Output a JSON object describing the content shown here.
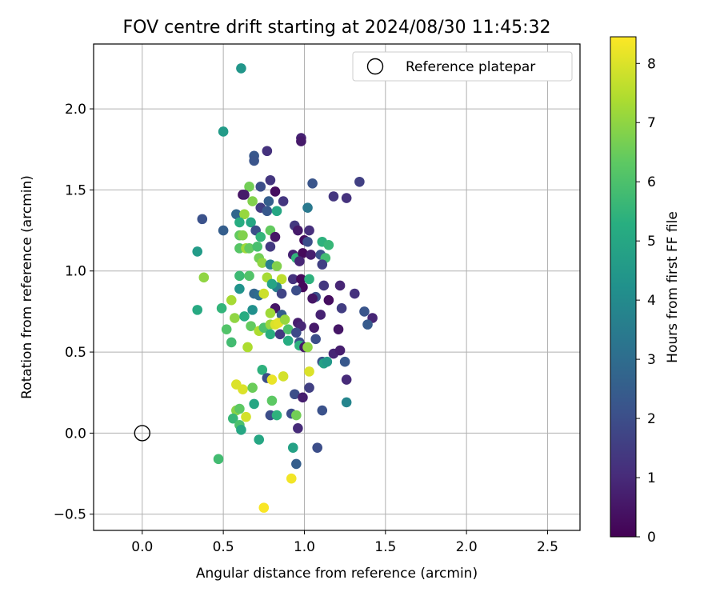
{
  "chart_data": {
    "type": "scatter",
    "title": "FOV centre drift starting at 2024/08/30 11:45:32",
    "xlabel": "Angular distance from reference (arcmin)",
    "ylabel": "Rotation from reference (arcmin)",
    "xlim": [
      -0.3,
      2.7
    ],
    "ylim": [
      -0.6,
      2.4
    ],
    "xticks": [
      0.0,
      0.5,
      1.0,
      1.5,
      2.0,
      2.5
    ],
    "xtick_labels": [
      "0.0",
      "0.5",
      "1.0",
      "1.5",
      "2.0",
      "2.5"
    ],
    "yticks": [
      -0.5,
      0.0,
      0.5,
      1.0,
      1.5,
      2.0
    ],
    "ytick_labels": [
      "−0.5",
      "0.0",
      "0.5",
      "1.0",
      "1.5",
      "2.0"
    ],
    "grid": true,
    "legend": {
      "position": "top-right",
      "entries": [
        {
          "label": "Reference platepar",
          "marker": "open-circle"
        }
      ]
    },
    "reference_point": {
      "x": 0.0,
      "y": 0.0
    },
    "colorbar": {
      "label": "Hours from first FF file",
      "colormap": "viridis",
      "min": 0,
      "max": 8.45,
      "ticks": [
        0,
        1,
        2,
        3,
        4,
        5,
        6,
        7,
        8
      ],
      "tick_labels": [
        "0",
        "1",
        "2",
        "3",
        "4",
        "5",
        "6",
        "7",
        "8"
      ]
    },
    "points": [
      [
        0.61,
        2.25,
        4.4
      ],
      [
        0.5,
        1.86,
        4.6
      ],
      [
        0.69,
        1.71,
        2.3
      ],
      [
        0.69,
        1.68,
        2.2
      ],
      [
        0.77,
        1.74,
        1.2
      ],
      [
        0.98,
        1.82,
        0.8
      ],
      [
        0.98,
        1.8,
        0.6
      ],
      [
        1.34,
        1.55,
        1.6
      ],
      [
        1.05,
        1.54,
        2.2
      ],
      [
        0.79,
        1.56,
        1.3
      ],
      [
        0.66,
        1.52,
        6.6
      ],
      [
        0.73,
        1.52,
        2.0
      ],
      [
        0.62,
        1.47,
        0.4
      ],
      [
        0.82,
        1.49,
        0.3
      ],
      [
        0.63,
        1.47,
        0.6
      ],
      [
        1.18,
        1.46,
        1.3
      ],
      [
        1.26,
        1.45,
        1.2
      ],
      [
        0.68,
        1.43,
        6.8
      ],
      [
        0.78,
        1.43,
        2.5
      ],
      [
        0.87,
        1.43,
        1.3
      ],
      [
        0.37,
        1.32,
        2.1
      ],
      [
        0.58,
        1.35,
        2.8
      ],
      [
        0.63,
        1.35,
        7.1
      ],
      [
        0.73,
        1.39,
        1.5
      ],
      [
        0.77,
        1.37,
        2.3
      ],
      [
        0.83,
        1.37,
        5.0
      ],
      [
        1.02,
        1.39,
        3.4
      ],
      [
        0.6,
        1.3,
        5.2
      ],
      [
        0.67,
        1.3,
        5.0
      ],
      [
        0.94,
        1.28,
        1.4
      ],
      [
        0.5,
        1.25,
        2.5
      ],
      [
        0.7,
        1.25,
        2.0
      ],
      [
        0.79,
        1.25,
        6.4
      ],
      [
        0.96,
        1.25,
        0.6
      ],
      [
        1.03,
        1.25,
        1.1
      ],
      [
        0.6,
        1.22,
        6.4
      ],
      [
        0.62,
        1.22,
        6.8
      ],
      [
        0.73,
        1.21,
        5.5
      ],
      [
        0.82,
        1.21,
        0.5
      ],
      [
        1.0,
        1.19,
        0.3
      ],
      [
        1.02,
        1.18,
        2.0
      ],
      [
        1.11,
        1.18,
        5.4
      ],
      [
        1.15,
        1.16,
        5.6
      ],
      [
        0.34,
        1.12,
        4.6
      ],
      [
        0.6,
        1.14,
        6.2
      ],
      [
        0.64,
        1.14,
        7.2
      ],
      [
        0.66,
        1.14,
        6.4
      ],
      [
        0.71,
        1.15,
        5.9
      ],
      [
        0.79,
        1.15,
        1.4
      ],
      [
        0.93,
        1.1,
        0.8
      ],
      [
        0.95,
        1.08,
        5.5
      ],
      [
        0.99,
        1.11,
        0.2
      ],
      [
        1.04,
        1.1,
        0.7
      ],
      [
        1.1,
        1.1,
        2.1
      ],
      [
        1.13,
        1.08,
        5.8
      ],
      [
        0.72,
        1.08,
        6.6
      ],
      [
        0.74,
        1.05,
        7.0
      ],
      [
        0.79,
        1.04,
        3.6
      ],
      [
        0.83,
        1.03,
        6.8
      ],
      [
        0.97,
        1.06,
        0.9
      ],
      [
        1.11,
        1.04,
        1.6
      ],
      [
        0.6,
        0.97,
        5.7
      ],
      [
        0.66,
        0.97,
        6.1
      ],
      [
        0.38,
        0.96,
        7.0
      ],
      [
        0.77,
        0.96,
        7.3
      ],
      [
        0.86,
        0.95,
        7.6
      ],
      [
        0.93,
        0.95,
        1.2
      ],
      [
        0.98,
        0.95,
        0.2
      ],
      [
        1.03,
        0.95,
        5.4
      ],
      [
        0.99,
        0.9,
        0.2
      ],
      [
        0.83,
        0.9,
        3.6
      ],
      [
        0.8,
        0.92,
        4.9
      ],
      [
        0.95,
        0.88,
        2.0
      ],
      [
        0.6,
        0.89,
        4.3
      ],
      [
        0.69,
        0.86,
        2.8
      ],
      [
        0.72,
        0.85,
        3.0
      ],
      [
        0.75,
        0.86,
        7.8
      ],
      [
        0.86,
        0.86,
        1.7
      ],
      [
        1.07,
        0.84,
        2.0
      ],
      [
        1.12,
        0.91,
        1.4
      ],
      [
        1.22,
        0.91,
        0.9
      ],
      [
        1.31,
        0.86,
        1.2
      ],
      [
        1.05,
        0.83,
        0.5
      ],
      [
        1.15,
        0.82,
        0.3
      ],
      [
        0.55,
        0.82,
        7.3
      ],
      [
        0.49,
        0.77,
        5.5
      ],
      [
        0.34,
        0.76,
        5.1
      ],
      [
        0.68,
        0.76,
        4.2
      ],
      [
        0.82,
        0.77,
        0.5
      ],
      [
        0.79,
        0.74,
        7.2
      ],
      [
        0.86,
        0.73,
        2.5
      ],
      [
        0.57,
        0.71,
        7.0
      ],
      [
        0.63,
        0.72,
        5.2
      ],
      [
        1.1,
        0.73,
        0.8
      ],
      [
        1.23,
        0.77,
        1.5
      ],
      [
        1.37,
        0.75,
        2.2
      ],
      [
        1.42,
        0.71,
        0.9
      ],
      [
        1.39,
        0.67,
        2.4
      ],
      [
        0.52,
        0.64,
        6.1
      ],
      [
        0.67,
        0.66,
        6.4
      ],
      [
        0.72,
        0.63,
        7.4
      ],
      [
        0.75,
        0.65,
        6.0
      ],
      [
        0.79,
        0.67,
        7.1
      ],
      [
        0.82,
        0.67,
        8.0
      ],
      [
        0.84,
        0.68,
        8.1
      ],
      [
        0.88,
        0.7,
        7.1
      ],
      [
        0.96,
        0.68,
        0.7
      ],
      [
        0.98,
        0.66,
        0.9
      ],
      [
        0.79,
        0.61,
        5.3
      ],
      [
        0.85,
        0.61,
        1.4
      ],
      [
        0.9,
        0.64,
        6.0
      ],
      [
        0.95,
        0.62,
        1.9
      ],
      [
        1.06,
        0.65,
        0.6
      ],
      [
        1.21,
        0.64,
        0.5
      ],
      [
        0.55,
        0.56,
        5.8
      ],
      [
        0.65,
        0.53,
        7.4
      ],
      [
        0.9,
        0.57,
        5.2
      ],
      [
        0.97,
        0.56,
        2.0
      ],
      [
        0.97,
        0.54,
        5.4
      ],
      [
        1.0,
        0.53,
        0.6
      ],
      [
        1.02,
        0.53,
        7.0
      ],
      [
        1.07,
        0.58,
        2.0
      ],
      [
        1.18,
        0.49,
        0.9
      ],
      [
        1.22,
        0.51,
        0.7
      ],
      [
        1.11,
        0.44,
        2.1
      ],
      [
        1.12,
        0.43,
        4.8
      ],
      [
        1.14,
        0.44,
        4.5
      ],
      [
        1.25,
        0.44,
        2.3
      ],
      [
        1.26,
        0.33,
        1.0
      ],
      [
        0.74,
        0.39,
        5.4
      ],
      [
        0.77,
        0.34,
        2.0
      ],
      [
        0.8,
        0.33,
        8.2
      ],
      [
        0.87,
        0.35,
        7.9
      ],
      [
        1.03,
        0.38,
        8.0
      ],
      [
        0.58,
        0.3,
        8.0
      ],
      [
        0.62,
        0.27,
        8.0
      ],
      [
        0.68,
        0.28,
        6.5
      ],
      [
        0.94,
        0.24,
        2.0
      ],
      [
        1.03,
        0.28,
        1.6
      ],
      [
        0.99,
        0.22,
        0.7
      ],
      [
        0.8,
        0.2,
        6.3
      ],
      [
        1.26,
        0.19,
        3.8
      ],
      [
        0.69,
        0.18,
        5.0
      ],
      [
        0.58,
        0.14,
        6.9
      ],
      [
        0.6,
        0.15,
        6.3
      ],
      [
        0.56,
        0.09,
        5.6
      ],
      [
        0.64,
        0.1,
        7.9
      ],
      [
        0.79,
        0.11,
        2.0
      ],
      [
        0.83,
        0.11,
        5.4
      ],
      [
        0.92,
        0.12,
        2.0
      ],
      [
        0.95,
        0.11,
        6.6
      ],
      [
        1.11,
        0.14,
        2.1
      ],
      [
        0.6,
        0.05,
        6.0
      ],
      [
        0.61,
        0.02,
        5.0
      ],
      [
        0.96,
        0.03,
        1.0
      ],
      [
        0.72,
        -0.04,
        5.0
      ],
      [
        0.47,
        -0.16,
        5.8
      ],
      [
        0.93,
        -0.09,
        4.8
      ],
      [
        1.08,
        -0.09,
        2.0
      ],
      [
        0.95,
        -0.19,
        2.5
      ],
      [
        0.92,
        -0.28,
        8.3
      ],
      [
        0.75,
        -0.46,
        8.4
      ]
    ]
  }
}
